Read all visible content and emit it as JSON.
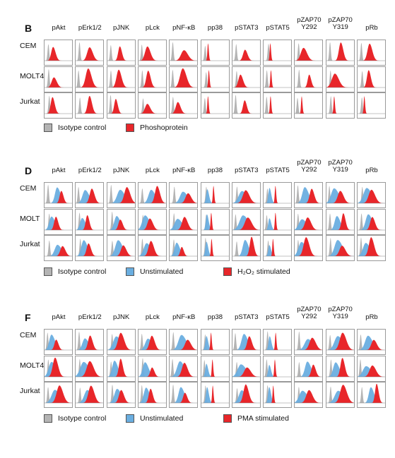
{
  "colors": {
    "isotype": "#b4b4b4",
    "unstim": "#6aaee0",
    "stim": "#e8262a"
  },
  "panels": [
    {
      "letter": "B",
      "columns": [
        "pAkt",
        "pErk1/2",
        "pJNK",
        "pLck",
        "pNF-κB",
        "pp38",
        "pSTAT3",
        "pSTAT5",
        "pZAP70\nY292",
        "pZAP70\nY319",
        "pRb"
      ],
      "rows": [
        "CEM",
        "MOLT4",
        "Jurkat"
      ],
      "legend": [
        {
          "label": "Isotype control",
          "color": "isotype"
        },
        {
          "label": "Phoshoprotein",
          "color": "stim"
        }
      ]
    },
    {
      "letter": "D",
      "columns": [
        "pAkt",
        "pErk1/2",
        "pJNK",
        "pLck",
        "pNF-κB",
        "pp38",
        "pSTAT3",
        "pSTAT5",
        "pZAP70\nY292",
        "pZAP70\nY319",
        "pRb"
      ],
      "rows": [
        "CEM",
        "MOLT",
        "Jurkat"
      ],
      "legend": [
        {
          "label": "Isotype control",
          "color": "isotype"
        },
        {
          "label": "Unstimulated",
          "color": "unstim"
        },
        {
          "label": "H₂O₂ stimulated",
          "color": "stim"
        }
      ]
    },
    {
      "letter": "F",
      "columns": [
        "pAkt",
        "pErk1/2",
        "pJNK",
        "pLck",
        "pNF-κB",
        "pp38",
        "pSTAT3",
        "pSTAT5",
        "pZAP70\nY292",
        "pZAP70\nY319",
        "pRb"
      ],
      "rows": [
        "CEM",
        "MOLT4",
        "Jurkat"
      ],
      "legend": [
        {
          "label": "Isotype control",
          "color": "isotype"
        },
        {
          "label": "Unstimulated",
          "color": "unstim"
        },
        {
          "label": "PMA stimulated",
          "color": "stim"
        }
      ]
    }
  ]
}
